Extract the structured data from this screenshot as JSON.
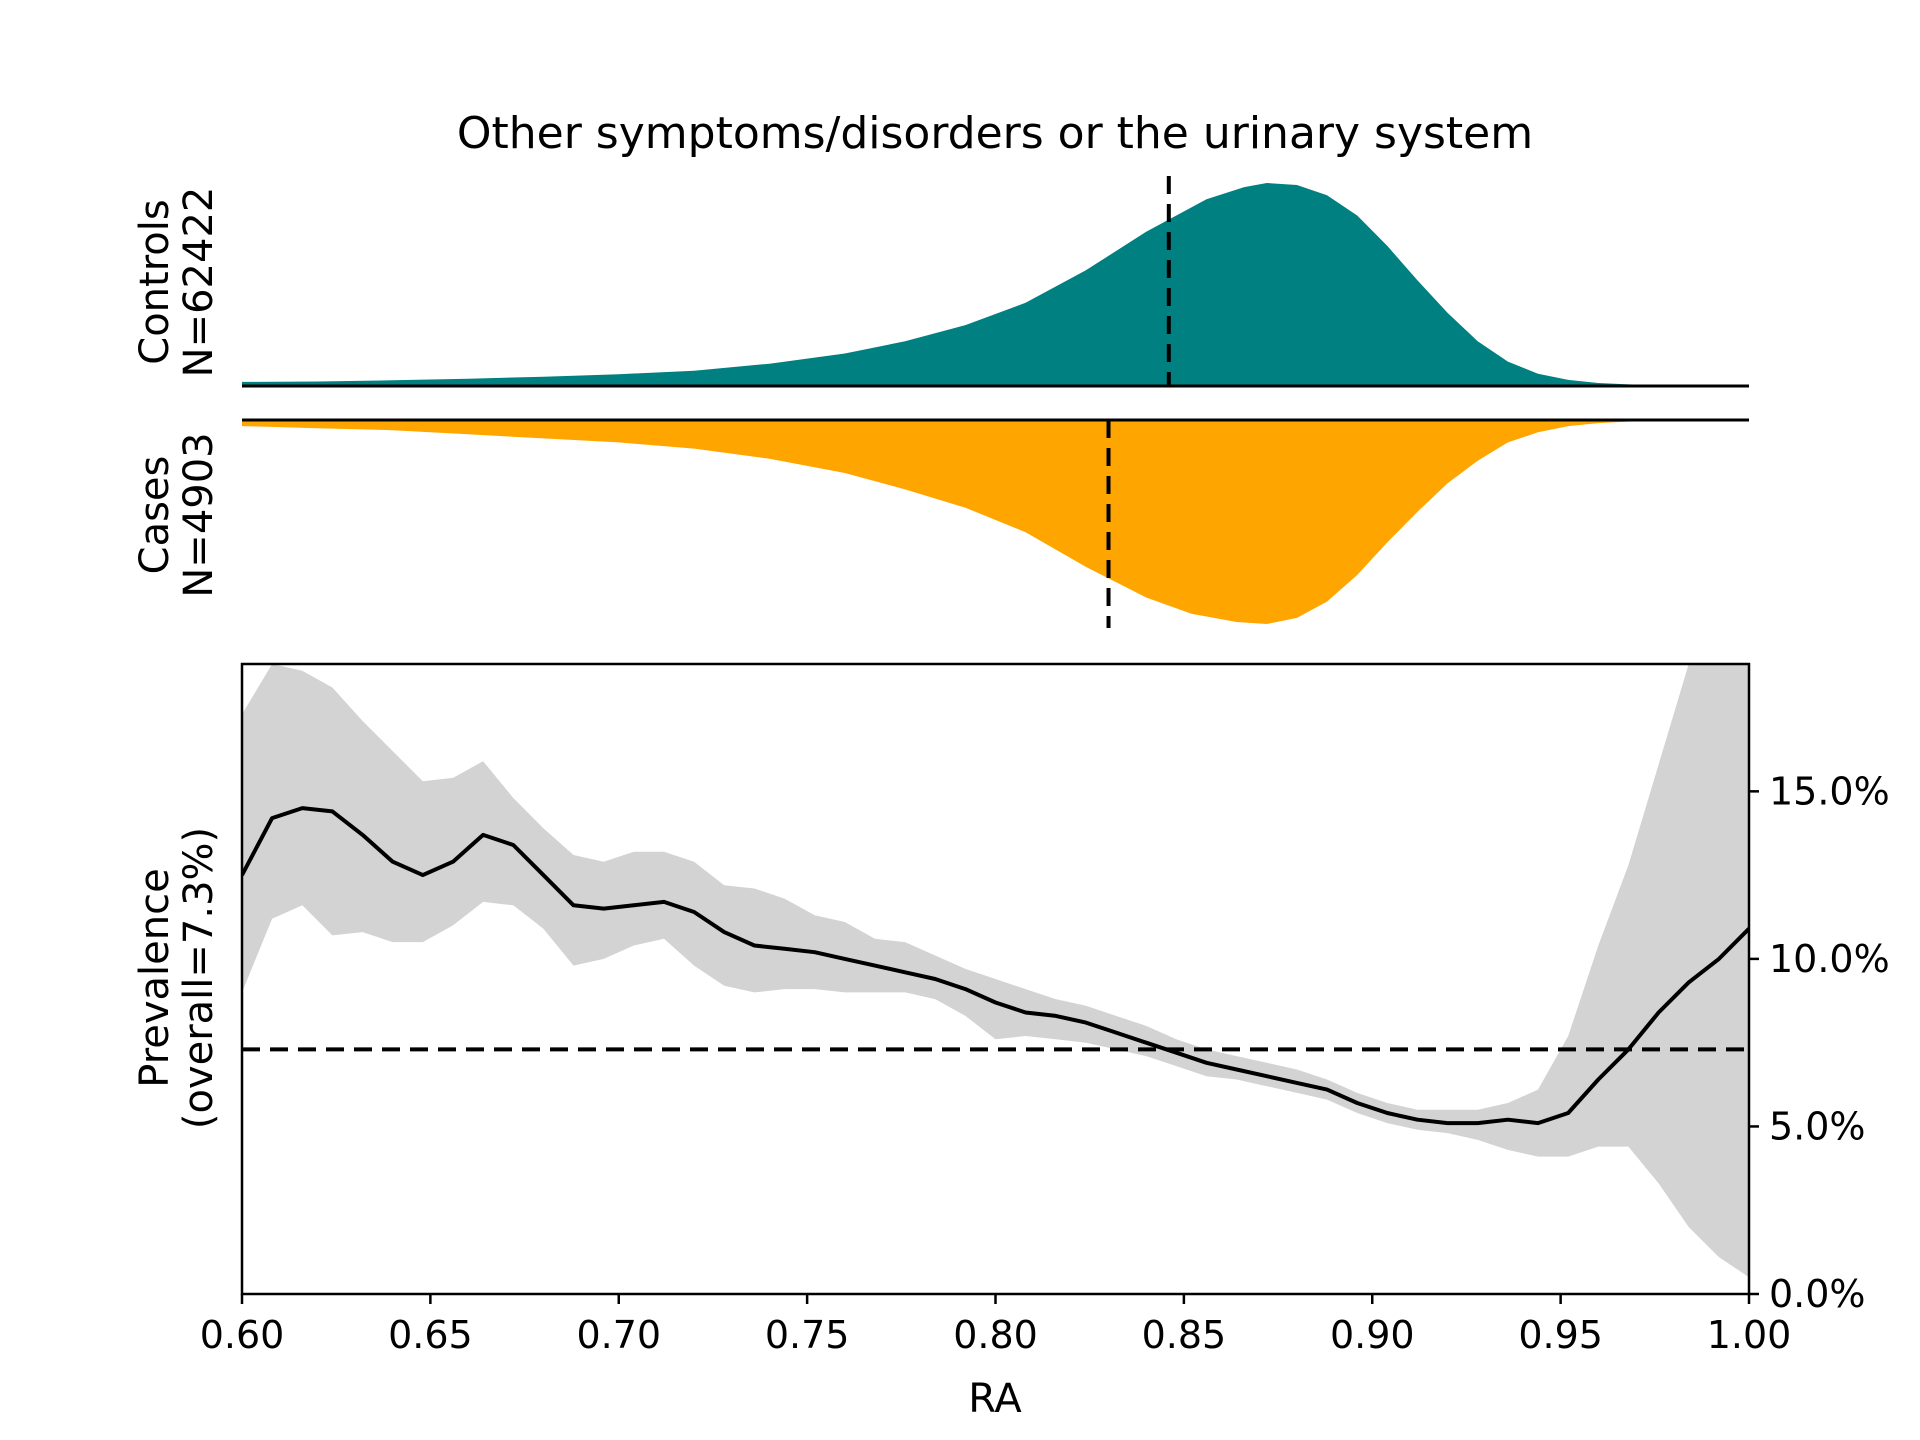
{
  "chart_data": {
    "type": "area",
    "title": "Other symptoms/disorders or the urinary system",
    "xlabel": "RA",
    "xlim": [
      0.6,
      1.0
    ],
    "x_ticks": [
      "0.60",
      "0.65",
      "0.70",
      "0.75",
      "0.80",
      "0.85",
      "0.90",
      "0.95",
      "1.00"
    ],
    "panels": {
      "controls": {
        "label_line1": "Controls",
        "label_line2": "N=62422",
        "color": "#008080",
        "median": 0.846,
        "x": [
          0.6,
          0.62,
          0.64,
          0.66,
          0.68,
          0.7,
          0.72,
          0.74,
          0.76,
          0.776,
          0.792,
          0.808,
          0.824,
          0.84,
          0.856,
          0.866,
          0.872,
          0.88,
          0.888,
          0.896,
          0.904,
          0.912,
          0.92,
          0.928,
          0.936,
          0.944,
          0.952,
          0.96,
          0.968,
          0.976,
          0.984,
          1.0
        ],
        "density": [
          0.02,
          0.022,
          0.028,
          0.036,
          0.046,
          0.058,
          0.075,
          0.11,
          0.16,
          0.22,
          0.3,
          0.41,
          0.57,
          0.76,
          0.92,
          0.98,
          1.0,
          0.99,
          0.94,
          0.84,
          0.69,
          0.52,
          0.36,
          0.22,
          0.12,
          0.06,
          0.03,
          0.015,
          0.008,
          0.004,
          0.002,
          0.0
        ]
      },
      "cases": {
        "label_line1": "Cases",
        "label_line2": "N=4903",
        "color": "#FFA500",
        "median": 0.83,
        "x": [
          0.6,
          0.62,
          0.64,
          0.66,
          0.68,
          0.7,
          0.72,
          0.74,
          0.76,
          0.776,
          0.792,
          0.808,
          0.824,
          0.84,
          0.852,
          0.864,
          0.872,
          0.88,
          0.888,
          0.896,
          0.904,
          0.912,
          0.92,
          0.928,
          0.936,
          0.944,
          0.952,
          0.96,
          0.968,
          0.976,
          0.984,
          1.0
        ],
        "density": [
          0.03,
          0.04,
          0.05,
          0.07,
          0.09,
          0.11,
          0.14,
          0.19,
          0.26,
          0.34,
          0.43,
          0.55,
          0.72,
          0.87,
          0.95,
          0.99,
          1.0,
          0.97,
          0.89,
          0.76,
          0.6,
          0.45,
          0.31,
          0.2,
          0.11,
          0.06,
          0.03,
          0.015,
          0.008,
          0.004,
          0.002,
          0.0
        ]
      }
    },
    "prevalence": {
      "ylabel_line1": "Prevalence",
      "ylabel_line2": "(overall=7.3%)",
      "ylim": [
        0,
        18.8
      ],
      "y_ticks": [
        0,
        5,
        10,
        15
      ],
      "y_tick_labels": [
        "0.0%",
        "5.0%",
        "10.0%",
        "15.0%"
      ],
      "overall": 7.3,
      "band_color": "#D3D3D3",
      "x": [
        0.6,
        0.608,
        0.616,
        0.624,
        0.632,
        0.64,
        0.648,
        0.656,
        0.664,
        0.672,
        0.68,
        0.688,
        0.696,
        0.704,
        0.712,
        0.72,
        0.728,
        0.736,
        0.744,
        0.752,
        0.76,
        0.768,
        0.776,
        0.784,
        0.792,
        0.8,
        0.808,
        0.816,
        0.824,
        0.832,
        0.84,
        0.848,
        0.856,
        0.864,
        0.872,
        0.88,
        0.888,
        0.896,
        0.904,
        0.912,
        0.92,
        0.928,
        0.936,
        0.944,
        0.952,
        0.96,
        0.968,
        0.976,
        0.984,
        0.992,
        1.0
      ],
      "y": [
        12.5,
        14.2,
        14.5,
        14.4,
        13.7,
        12.9,
        12.5,
        12.9,
        13.7,
        13.4,
        12.5,
        11.6,
        11.5,
        11.6,
        11.7,
        11.4,
        10.8,
        10.4,
        10.3,
        10.2,
        10.0,
        9.8,
        9.6,
        9.4,
        9.1,
        8.7,
        8.4,
        8.3,
        8.1,
        7.8,
        7.5,
        7.2,
        6.9,
        6.7,
        6.5,
        6.3,
        6.1,
        5.7,
        5.4,
        5.2,
        5.1,
        5.1,
        5.2,
        5.1,
        5.4,
        6.4,
        7.3,
        8.4,
        9.3,
        10.0,
        10.9
      ],
      "ci_low": [
        9.0,
        11.2,
        11.6,
        10.7,
        10.8,
        10.5,
        10.5,
        11.0,
        11.7,
        11.6,
        10.9,
        9.8,
        10.0,
        10.4,
        10.6,
        9.8,
        9.2,
        9.0,
        9.1,
        9.1,
        9.0,
        9.0,
        9.0,
        8.8,
        8.3,
        7.6,
        7.7,
        7.6,
        7.5,
        7.3,
        7.1,
        6.8,
        6.5,
        6.4,
        6.2,
        6.0,
        5.8,
        5.4,
        5.1,
        4.9,
        4.8,
        4.6,
        4.3,
        4.1,
        4.1,
        4.4,
        4.4,
        3.3,
        2.0,
        1.1,
        0.5
      ],
      "ci_high": [
        17.3,
        18.8,
        18.6,
        18.1,
        17.1,
        16.2,
        15.3,
        15.4,
        15.9,
        14.8,
        13.9,
        13.1,
        12.9,
        13.2,
        13.2,
        12.9,
        12.2,
        12.1,
        11.8,
        11.3,
        11.1,
        10.6,
        10.5,
        10.1,
        9.7,
        9.4,
        9.1,
        8.8,
        8.6,
        8.3,
        8.0,
        7.6,
        7.3,
        7.1,
        6.9,
        6.7,
        6.4,
        6.0,
        5.7,
        5.5,
        5.5,
        5.5,
        5.7,
        6.1,
        7.7,
        10.4,
        12.8,
        15.8,
        18.8,
        18.8,
        18.8
      ]
    }
  }
}
